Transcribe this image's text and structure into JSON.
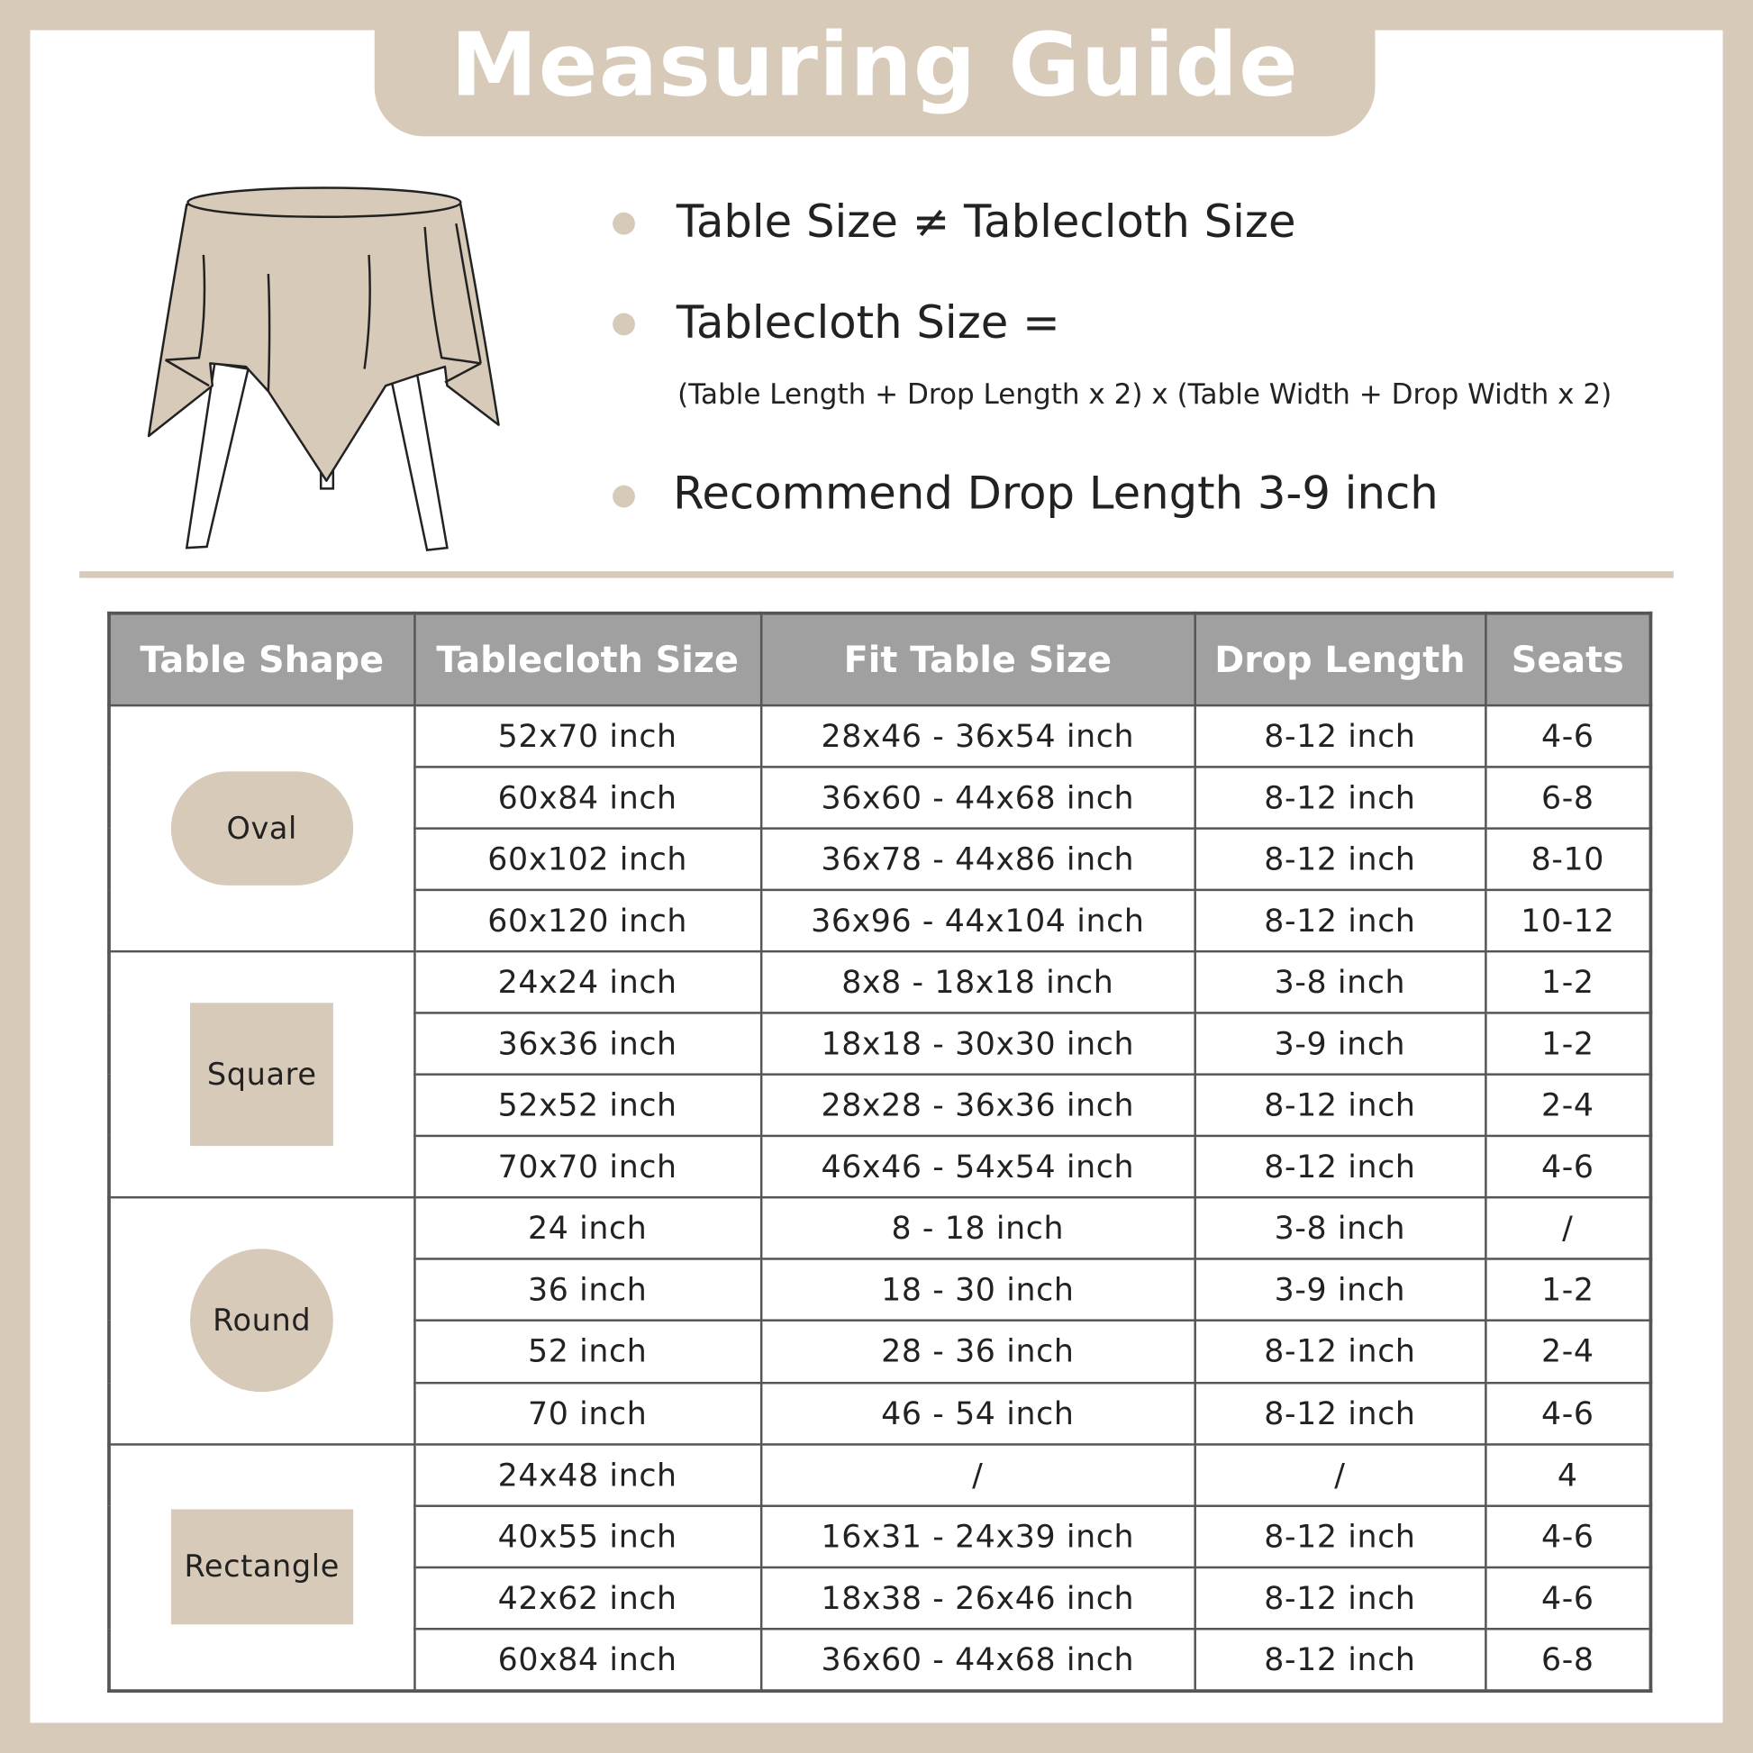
{
  "title": "Measuring Guide",
  "colors": {
    "accent": "#d8cab9",
    "header_bg": "#a0a0a0",
    "border": "#555555"
  },
  "illustration": "tablecloth-on-round-table-icon",
  "bullets": [
    "Table Size ≠ Tablecloth Size",
    "Tablecloth Size =",
    "Recommend Drop Length 3-9 inch"
  ],
  "formula": "(Table Length + Drop Length x 2) x (Table Width + Drop Width x 2)",
  "table": {
    "headers": [
      "Table Shape",
      "Tablecloth Size",
      "Fit Table Size",
      "Drop Length",
      "Seats"
    ],
    "groups": [
      {
        "shape": "Oval",
        "style": "oval",
        "rows": [
          [
            "52x70 inch",
            "28x46 - 36x54 inch",
            "8-12 inch",
            "4-6"
          ],
          [
            "60x84 inch",
            "36x60 - 44x68 inch",
            "8-12 inch",
            "6-8"
          ],
          [
            "60x102 inch",
            "36x78 - 44x86 inch",
            "8-12 inch",
            "8-10"
          ],
          [
            "60x120 inch",
            "36x96 - 44x104 inch",
            "8-12 inch",
            "10-12"
          ]
        ]
      },
      {
        "shape": "Square",
        "style": "square",
        "rows": [
          [
            "24x24 inch",
            "8x8 - 18x18 inch",
            "3-8 inch",
            "1-2"
          ],
          [
            "36x36 inch",
            "18x18 - 30x30 inch",
            "3-9 inch",
            "1-2"
          ],
          [
            "52x52 inch",
            "28x28 - 36x36 inch",
            "8-12 inch",
            "2-4"
          ],
          [
            "70x70 inch",
            "46x46 - 54x54 inch",
            "8-12 inch",
            "4-6"
          ]
        ]
      },
      {
        "shape": "Round",
        "style": "round",
        "rows": [
          [
            "24 inch",
            "8 - 18 inch",
            "3-8 inch",
            "/"
          ],
          [
            "36 inch",
            "18 - 30 inch",
            "3-9 inch",
            "1-2"
          ],
          [
            "52 inch",
            "28 - 36 inch",
            "8-12 inch",
            "2-4"
          ],
          [
            "70 inch",
            "46 - 54 inch",
            "8-12 inch",
            "4-6"
          ]
        ]
      },
      {
        "shape": "Rectangle",
        "style": "rect",
        "rows": [
          [
            "24x48 inch",
            "/",
            "/",
            "4"
          ],
          [
            "40x55 inch",
            "16x31 - 24x39 inch",
            "8-12 inch",
            "4-6"
          ],
          [
            "42x62 inch",
            "18x38 - 26x46 inch",
            "8-12 inch",
            "4-6"
          ],
          [
            "60x84 inch",
            "36x60 - 44x68 inch",
            "8-12 inch",
            "6-8"
          ]
        ]
      }
    ]
  }
}
